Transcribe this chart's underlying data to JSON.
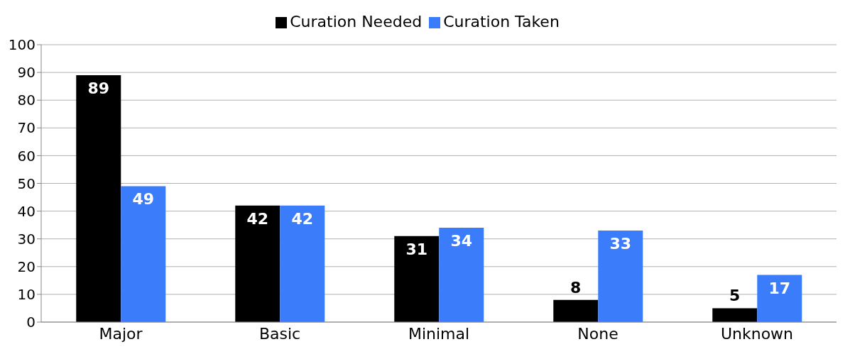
{
  "chart_data": {
    "type": "bar",
    "categories": [
      "Major",
      "Basic",
      "Minimal",
      "None",
      "Unknown"
    ],
    "series": [
      {
        "name": "Curation Needed",
        "color": "#000000",
        "values": [
          89,
          42,
          31,
          8,
          5
        ]
      },
      {
        "name": "Curation Taken",
        "color": "#3b7cfb",
        "values": [
          49,
          42,
          34,
          33,
          17
        ]
      }
    ],
    "ylim": [
      0,
      100
    ],
    "yticks": [
      0,
      10,
      20,
      30,
      40,
      50,
      60,
      70,
      80,
      90,
      100
    ],
    "grid": "y",
    "legend": "top",
    "data_labels": true
  }
}
